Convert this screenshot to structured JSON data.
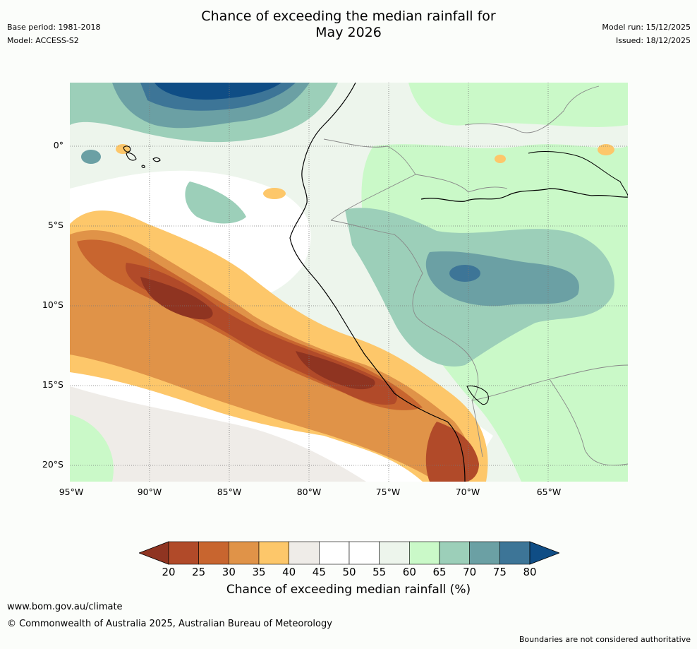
{
  "header": {
    "base_period": "Base period: 1981-2018",
    "model": "Model: ACCESS-S2",
    "title_line1": "Chance of exceeding the median rainfall for",
    "title_line2": "May 2026",
    "model_run": "Model run: 15/12/2025",
    "issued": "Issued: 18/12/2025"
  },
  "map": {
    "lat_labels": [
      "0°",
      "5°S",
      "10°S",
      "15°S",
      "20°S"
    ],
    "lon_labels": [
      "95°W",
      "90°W",
      "85°W",
      "80°W",
      "75°W",
      "70°W",
      "65°W"
    ],
    "extent": {
      "lon_min": -95,
      "lon_max": -60,
      "lat_max": 4,
      "lat_min": -21
    }
  },
  "colorbar": {
    "ticks": [
      "20",
      "25",
      "30",
      "35",
      "40",
      "45",
      "50",
      "55",
      "60",
      "65",
      "70",
      "75",
      "80"
    ],
    "colors": [
      "#8f3421",
      "#b14a29",
      "#c8652f",
      "#e09348",
      "#fdc76a",
      "#efece8",
      "#ffffff",
      "#ffffff",
      "#edf5ec",
      "#caf9c8",
      "#9ccfb9",
      "#6ba0a4",
      "#3d7597",
      "#0f4d85"
    ],
    "label": "Chance of exceeding median rainfall (%)"
  },
  "footer": {
    "website": "www.bom.gov.au/climate",
    "copyright": "© Commonwealth of Australia 2025, Australian Bureau of Meteorology",
    "disclaimer": "Boundaries are not considered authoritative"
  }
}
